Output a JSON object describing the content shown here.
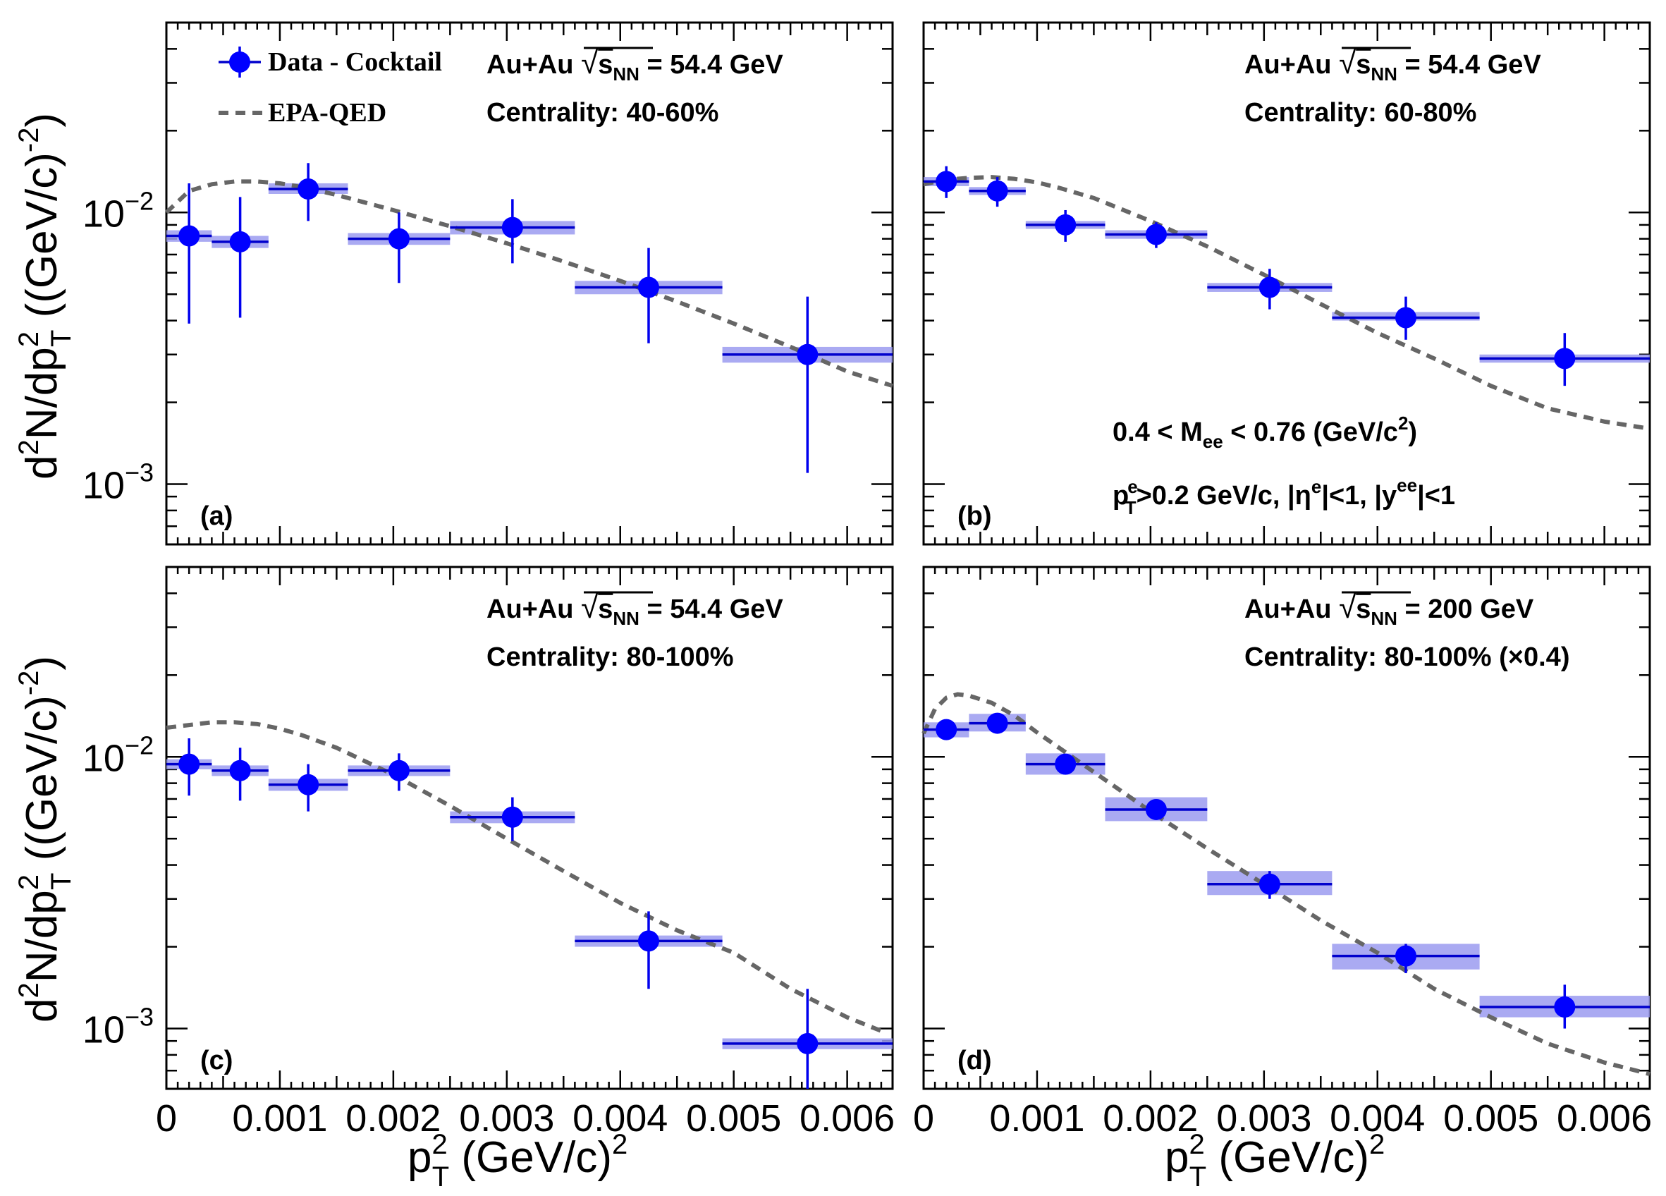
{
  "legend": {
    "data": "Data - Cocktail",
    "model": "EPA-QED"
  },
  "ylabel": {
    "main": "d",
    "sup1": "2",
    "mid": "N/dp",
    "sup2": "2",
    "sub": "T",
    "unit": " ((GeV/c)",
    "unit_sup": "-2",
    "close": ")"
  },
  "xlabel": {
    "main": "p",
    "sup": "2",
    "sub": "T",
    "unit": " (GeV/c)",
    "unit_sup": "2"
  },
  "xticks": [
    "0",
    "0.001",
    "0.002",
    "0.003",
    "0.004",
    "0.005",
    "0.006"
  ],
  "yticks": {
    "major_base": "10",
    "exp_m2": "−2",
    "exp_m3": "−3"
  },
  "annotations": {
    "b_mass": {
      "pre": "0.4 < M",
      "sub": "ee",
      "post": " < 0.76 (GeV/c",
      "sup": "2",
      "end": ")"
    },
    "b_cuts": {
      "p": "p",
      "p_sup": "e",
      "p_sub": "T",
      "p_post": ">0.2 GeV/c, |η",
      "eta_sup": "e",
      "mid": "|<1, |y",
      "y_sup": "ee",
      "end": "|<1"
    }
  },
  "colors": {
    "points": "#0000ff",
    "syst_box": "#9b9bf0",
    "model": "#666666"
  },
  "chart_data": [
    {
      "type": "scatter",
      "panel": "(a)",
      "system": "Au+Au",
      "energy_label": "s",
      "energy_sub": "NN",
      "energy_value": " = 54.4 GeV",
      "centrality": "Centrality: 40-60%",
      "xlabel": "p_T^2 (GeV/c)^2",
      "ylabel": "d^2N/dp_T^2 ((GeV/c)^-2)",
      "xlim": [
        0,
        0.0064
      ],
      "ylim": [
        0.0006,
        0.05
      ],
      "yscale": "log",
      "series": [
        {
          "name": "Data - Cocktail",
          "x": [
            0.0002,
            0.00065,
            0.00125,
            0.00205,
            0.00305,
            0.00425,
            0.00565
          ],
          "y": [
            0.0082,
            0.0078,
            0.0122,
            0.008,
            0.0088,
            0.0053,
            0.003
          ],
          "xlo": [
            0,
            0.0004,
            0.0009,
            0.0016,
            0.0025,
            0.0036,
            0.0049
          ],
          "xhi": [
            0.0004,
            0.0009,
            0.0016,
            0.0025,
            0.0036,
            0.0049,
            0.0064
          ],
          "ylo": [
            0.0039,
            0.0041,
            0.0093,
            0.0055,
            0.0065,
            0.0033,
            0.0011
          ],
          "yhi": [
            0.0128,
            0.0114,
            0.0152,
            0.01,
            0.0112,
            0.0074,
            0.0049
          ],
          "slo": [
            0.0078,
            0.0074,
            0.0117,
            0.0076,
            0.0083,
            0.005,
            0.0028
          ],
          "shi": [
            0.0086,
            0.0082,
            0.0128,
            0.0084,
            0.0093,
            0.0056,
            0.0032
          ]
        },
        {
          "name": "EPA-QED",
          "x": [
            0,
            0.0002,
            0.0004,
            0.0006,
            0.0008,
            0.001,
            0.0012,
            0.0015,
            0.002,
            0.0025,
            0.003,
            0.0035,
            0.004,
            0.0045,
            0.005,
            0.0055,
            0.006,
            0.0064
          ],
          "y": [
            0.01,
            0.012,
            0.0127,
            0.013,
            0.013,
            0.0128,
            0.0124,
            0.0116,
            0.0102,
            0.0089,
            0.0077,
            0.0066,
            0.0056,
            0.0047,
            0.0039,
            0.0032,
            0.0026,
            0.0023
          ]
        }
      ]
    },
    {
      "type": "scatter",
      "panel": "(b)",
      "system": "Au+Au",
      "energy_label": "s",
      "energy_sub": "NN",
      "energy_value": " = 54.4 GeV",
      "centrality": "Centrality: 60-80%",
      "xlabel": "p_T^2 (GeV/c)^2",
      "ylabel": "d^2N/dp_T^2 ((GeV/c)^-2)",
      "xlim": [
        0,
        0.0064
      ],
      "ylim": [
        0.0006,
        0.05
      ],
      "yscale": "log",
      "series": [
        {
          "name": "Data - Cocktail",
          "x": [
            0.0002,
            0.00065,
            0.00125,
            0.00205,
            0.00305,
            0.00425,
            0.00565
          ],
          "y": [
            0.013,
            0.012,
            0.009,
            0.0083,
            0.0053,
            0.0041,
            0.0029
          ],
          "xlo": [
            0,
            0.0004,
            0.0009,
            0.0016,
            0.0025,
            0.0036,
            0.0049
          ],
          "xhi": [
            0.0004,
            0.0009,
            0.0016,
            0.0025,
            0.0036,
            0.0049,
            0.0064
          ],
          "ylo": [
            0.0113,
            0.0105,
            0.0078,
            0.0074,
            0.0044,
            0.0034,
            0.0023
          ],
          "yhi": [
            0.0148,
            0.0135,
            0.0102,
            0.0092,
            0.0062,
            0.0049,
            0.0036
          ],
          "slo": [
            0.0125,
            0.0116,
            0.0087,
            0.008,
            0.0051,
            0.004,
            0.0028
          ],
          "shi": [
            0.0135,
            0.0124,
            0.0093,
            0.0086,
            0.0055,
            0.0043,
            0.003
          ]
        },
        {
          "name": "EPA-QED",
          "x": [
            0,
            0.0002,
            0.0004,
            0.0006,
            0.0008,
            0.001,
            0.0012,
            0.0015,
            0.002,
            0.0025,
            0.003,
            0.0035,
            0.004,
            0.0045,
            0.005,
            0.0055,
            0.006,
            0.0064
          ],
          "y": [
            0.0127,
            0.0132,
            0.0134,
            0.0135,
            0.0133,
            0.0129,
            0.0123,
            0.0113,
            0.0093,
            0.0075,
            0.0059,
            0.0046,
            0.0036,
            0.0029,
            0.0023,
            0.0019,
            0.0017,
            0.0016
          ]
        }
      ]
    },
    {
      "type": "scatter",
      "panel": "(c)",
      "system": "Au+Au",
      "energy_label": "s",
      "energy_sub": "NN",
      "energy_value": " = 54.4 GeV",
      "centrality": "Centrality: 80-100%",
      "xlabel": "p_T^2 (GeV/c)^2",
      "ylabel": "d^2N/dp_T^2 ((GeV/c)^-2)",
      "xlim": [
        0,
        0.0064
      ],
      "ylim": [
        0.0006,
        0.05
      ],
      "yscale": "log",
      "series": [
        {
          "name": "Data - Cocktail",
          "x": [
            0.0002,
            0.00065,
            0.00125,
            0.00205,
            0.00305,
            0.00425,
            0.00565
          ],
          "y": [
            0.0094,
            0.0089,
            0.0079,
            0.0089,
            0.006,
            0.0021,
            0.00088
          ],
          "xlo": [
            0,
            0.0004,
            0.0009,
            0.0016,
            0.0025,
            0.0036,
            0.0049
          ],
          "xhi": [
            0.0004,
            0.0009,
            0.0016,
            0.0025,
            0.0036,
            0.0049,
            0.0064
          ],
          "ylo": [
            0.0072,
            0.0069,
            0.0063,
            0.0075,
            0.0049,
            0.0014,
            0.0006
          ],
          "yhi": [
            0.0117,
            0.0108,
            0.0094,
            0.0103,
            0.0071,
            0.0027,
            0.0014
          ],
          "slo": [
            0.009,
            0.0085,
            0.0075,
            0.0085,
            0.0057,
            0.002,
            0.00084
          ],
          "shi": [
            0.0098,
            0.0093,
            0.0083,
            0.0093,
            0.0063,
            0.0022,
            0.00092
          ]
        },
        {
          "name": "EPA-QED",
          "x": [
            0,
            0.0002,
            0.0004,
            0.0006,
            0.0008,
            0.001,
            0.0012,
            0.0015,
            0.002,
            0.0025,
            0.003,
            0.0035,
            0.004,
            0.0045,
            0.005,
            0.0055,
            0.006,
            0.0063
          ],
          "y": [
            0.0128,
            0.0131,
            0.0134,
            0.0134,
            0.0132,
            0.0127,
            0.012,
            0.0108,
            0.0086,
            0.0066,
            0.005,
            0.0038,
            0.0029,
            0.0023,
            0.0019,
            0.0014,
            0.0011,
            0.00098
          ]
        }
      ]
    },
    {
      "type": "scatter",
      "panel": "(d)",
      "system": "Au+Au",
      "energy_label": "s",
      "energy_sub": "NN",
      "energy_value": " = 200 GeV",
      "centrality": "Centrality: 80-100% (×0.4)",
      "xlabel": "p_T^2 (GeV/c)^2",
      "ylabel": "d^2N/dp_T^2 ((GeV/c)^-2)",
      "xlim": [
        0,
        0.0064
      ],
      "ylim": [
        0.0006,
        0.05
      ],
      "yscale": "log",
      "series": [
        {
          "name": "Data - Cocktail",
          "x": [
            0.0002,
            0.00065,
            0.00125,
            0.00205,
            0.00305,
            0.00425,
            0.00565
          ],
          "y": [
            0.0126,
            0.0133,
            0.0094,
            0.0064,
            0.0034,
            0.00185,
            0.0012
          ],
          "xlo": [
            0,
            0.0004,
            0.0009,
            0.0016,
            0.0025,
            0.0036,
            0.0049
          ],
          "xhi": [
            0.0004,
            0.0009,
            0.0016,
            0.0025,
            0.0036,
            0.0049,
            0.0064
          ],
          "ylo": [
            0.012,
            0.0127,
            0.0089,
            0.006,
            0.003,
            0.0016,
            0.001
          ],
          "yhi": [
            0.0133,
            0.014,
            0.0099,
            0.0069,
            0.0038,
            0.00205,
            0.00145
          ],
          "slo": [
            0.0118,
            0.0124,
            0.0086,
            0.0058,
            0.0031,
            0.00165,
            0.0011
          ],
          "shi": [
            0.0134,
            0.0144,
            0.0103,
            0.0071,
            0.0038,
            0.00205,
            0.00132
          ]
        },
        {
          "name": "EPA-QED",
          "x": [
            0,
            0.0001,
            0.0002,
            0.0003,
            0.0004,
            0.0006,
            0.0008,
            0.001,
            0.0015,
            0.002,
            0.0025,
            0.003,
            0.0035,
            0.004,
            0.0045,
            0.005,
            0.0055,
            0.006,
            0.0064
          ],
          "y": [
            0.0122,
            0.015,
            0.0165,
            0.017,
            0.0168,
            0.0158,
            0.0142,
            0.0123,
            0.0088,
            0.0063,
            0.0046,
            0.0034,
            0.0025,
            0.0019,
            0.0014,
            0.0011,
            0.00088,
            0.00075,
            0.00068
          ]
        }
      ]
    }
  ]
}
